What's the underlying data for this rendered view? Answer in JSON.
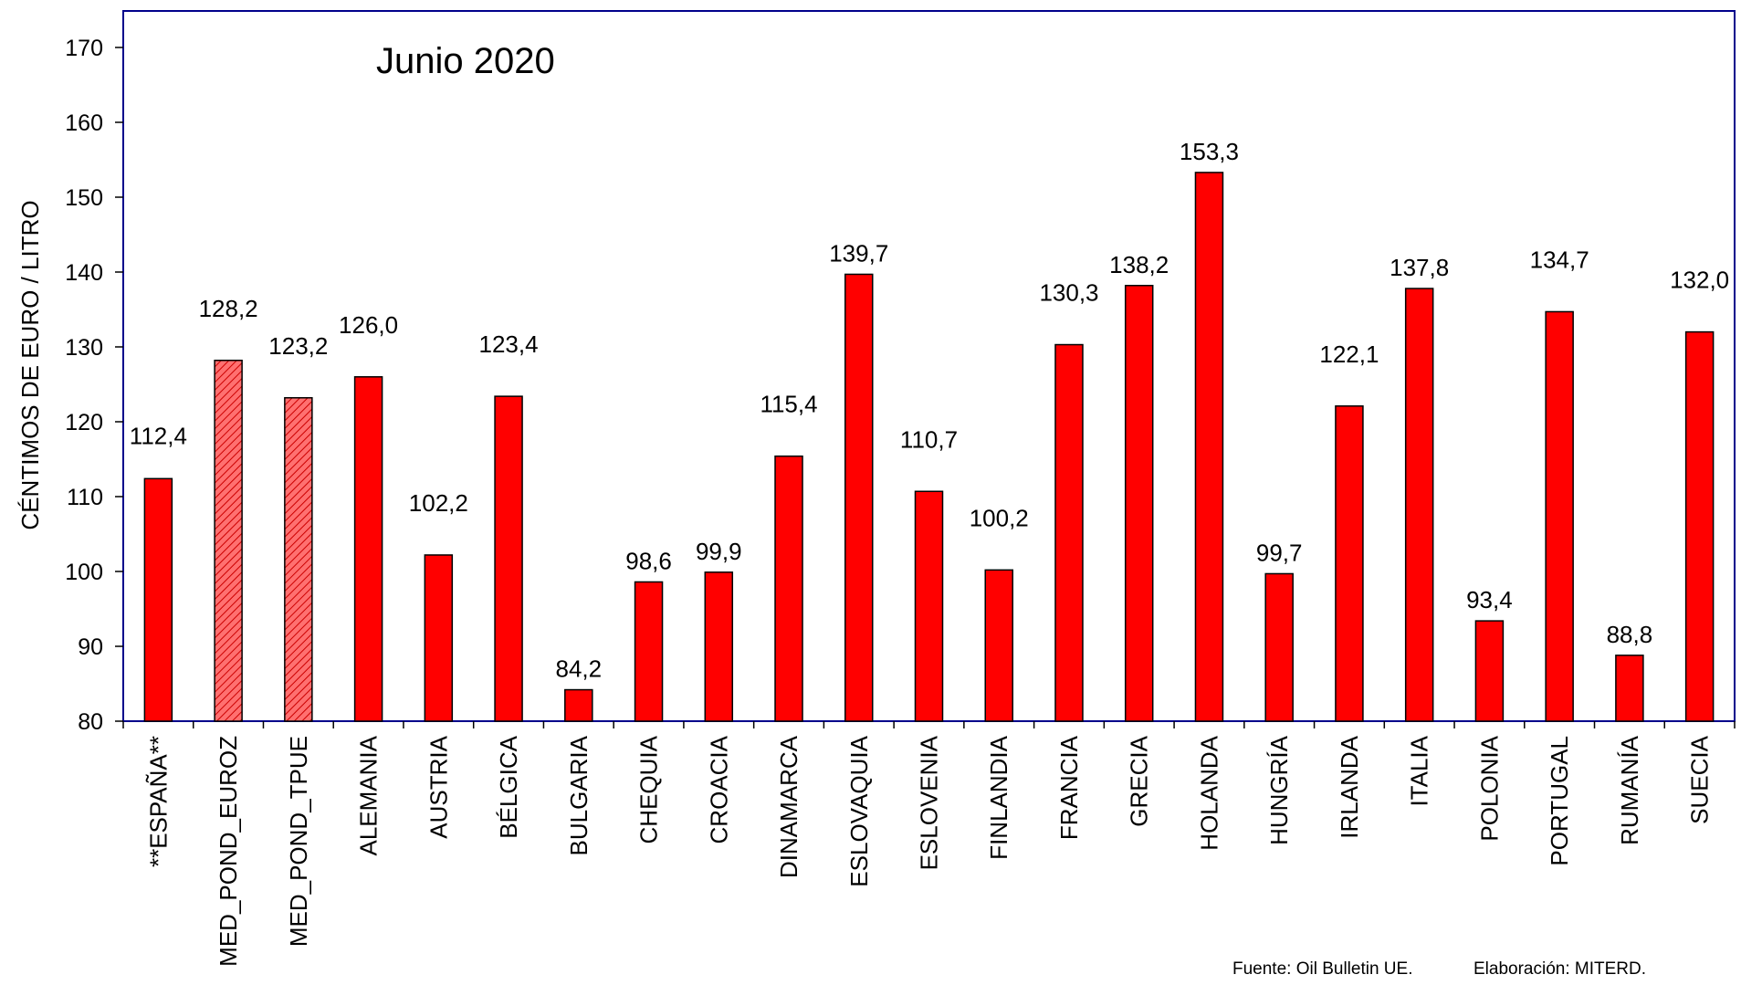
{
  "chart_data": {
    "type": "bar",
    "title": "Junio 2020",
    "ylabel": "CÉNTIMOS DE EURO / LITRO",
    "xlabel": "",
    "ylim": [
      80,
      170
    ],
    "yticks": [
      80,
      90,
      100,
      110,
      120,
      130,
      140,
      150,
      160,
      170
    ],
    "categories": [
      "**ESPAÑA**",
      "MED_POND_EUROZ",
      "MED_POND_TPUE",
      "ALEMANIA",
      "AUSTRIA",
      "BÉLGICA",
      "BULGARIA",
      "CHEQUIA",
      "CROACIA",
      "DINAMARCA",
      "ESLOVAQUIA",
      "ESLOVENIA",
      "FINLANDIA",
      "FRANCIA",
      "GRECIA",
      "HOLANDA",
      "HUNGRÍA",
      "IRLANDA",
      "ITALIA",
      "POLONIA",
      "PORTUGAL",
      "RUMANÍA",
      "SUECIA"
    ],
    "values": [
      112.4,
      128.2,
      123.2,
      126.0,
      102.2,
      123.4,
      84.2,
      98.6,
      99.9,
      115.4,
      139.7,
      110.7,
      100.2,
      130.3,
      138.2,
      153.3,
      99.7,
      122.1,
      137.8,
      93.4,
      134.7,
      88.8,
      132.0
    ],
    "value_labels": [
      "112,4",
      "128,2",
      "123,2",
      "126,0",
      "102,2",
      "123,4",
      "84,2",
      "98,6",
      "99,9",
      "115,4",
      "139,7",
      "110,7",
      "100,2",
      "130,3",
      "138,2",
      "153,3",
      "99,7",
      "122,1",
      "137,8",
      "93,4",
      "134,7",
      "88,8",
      "132,0"
    ],
    "hatched": [
      false,
      true,
      true,
      false,
      false,
      false,
      false,
      false,
      false,
      false,
      false,
      false,
      false,
      false,
      false,
      false,
      false,
      false,
      false,
      false,
      false,
      false,
      false
    ],
    "colors": {
      "bar": "#ff0000",
      "bar_hatched": "#ff6666",
      "outline": "#000000",
      "frame": "#00008b"
    },
    "grid": false,
    "legend": "none"
  },
  "footer": {
    "source": "Fuente: Oil Bulletin UE.",
    "credit": "Elaboración: MITERD."
  }
}
